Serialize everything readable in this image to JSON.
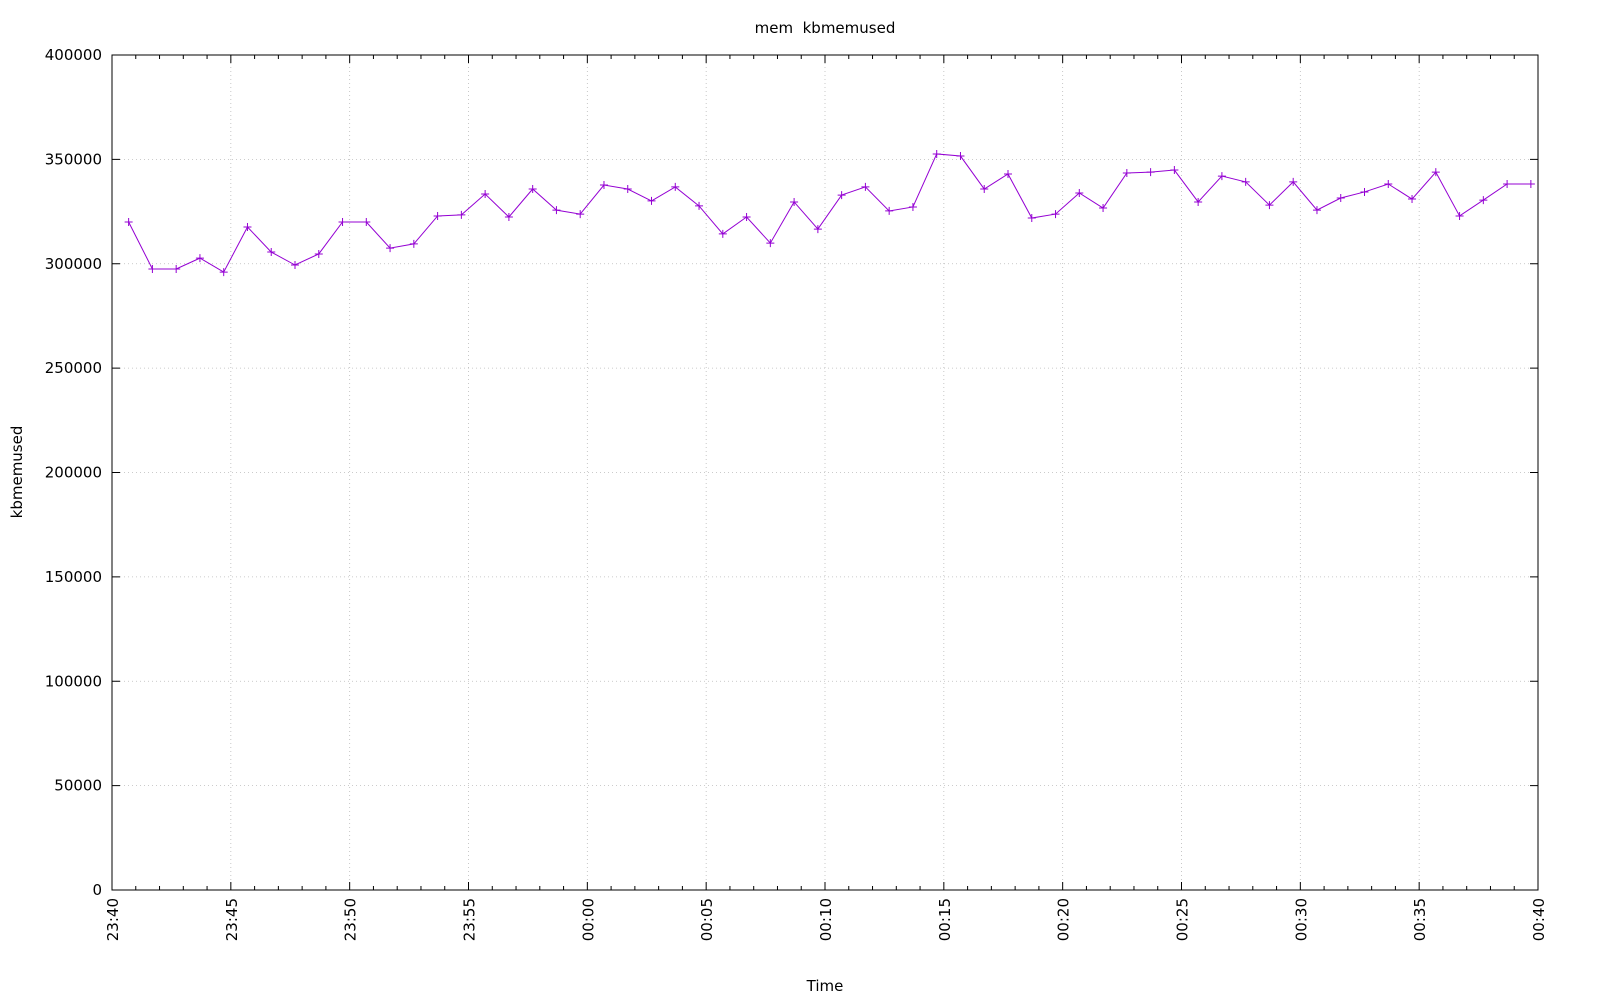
{
  "chart_data": {
    "type": "line",
    "title": "mem  kbmemused",
    "xlabel": "Time",
    "ylabel": "kbmemused",
    "x": [
      1420.7,
      1421.7,
      1422.7,
      1423.7,
      1424.7,
      1425.7,
      1426.7,
      1427.7,
      1428.7,
      1429.7,
      1430.7,
      1431.7,
      1432.7,
      1433.7,
      1434.7,
      1435.7,
      1436.7,
      1437.7,
      1438.7,
      1439.7,
      1440.7,
      1441.7,
      1442.7,
      1443.7,
      1444.7,
      1445.7,
      1446.7,
      1447.7,
      1448.7,
      1449.7,
      1450.7,
      1451.7,
      1452.7,
      1453.7,
      1454.7,
      1455.7,
      1456.7,
      1457.7,
      1458.7,
      1459.7,
      1460.7,
      1461.7,
      1462.7,
      1463.7,
      1464.7,
      1465.7,
      1466.7,
      1467.7,
      1468.7,
      1469.7,
      1470.7,
      1471.7,
      1472.7,
      1473.7,
      1474.7,
      1475.7,
      1476.7,
      1477.7,
      1478.7,
      1479.7
    ],
    "series": [
      {
        "name": "kbmemused",
        "color": "#9400d3",
        "values": [
          320000,
          297500,
          297500,
          302700,
          296000,
          317600,
          305600,
          299400,
          304700,
          320000,
          320000,
          307500,
          309500,
          322900,
          323400,
          333400,
          322400,
          335800,
          325700,
          323800,
          337700,
          335800,
          330100,
          336800,
          327700,
          314300,
          322400,
          309900,
          329600,
          316600,
          332900,
          336800,
          325300,
          327200,
          352600,
          351600,
          335800,
          343000,
          321900,
          323800,
          333900,
          326700,
          343500,
          343900,
          344900,
          329600,
          342000,
          339200,
          328100,
          339200,
          325700,
          331500,
          334400,
          338200,
          331000,
          343900,
          322900,
          330500,
          338200,
          338200
        ]
      }
    ],
    "xlim": [
      1420,
      1480
    ],
    "xticks": [
      {
        "value": 1420,
        "label": "23:40"
      },
      {
        "value": 1425,
        "label": "23:45"
      },
      {
        "value": 1430,
        "label": "23:50"
      },
      {
        "value": 1435,
        "label": "23:55"
      },
      {
        "value": 1440,
        "label": "00:00"
      },
      {
        "value": 1445,
        "label": "00:05"
      },
      {
        "value": 1450,
        "label": "00:10"
      },
      {
        "value": 1455,
        "label": "00:15"
      },
      {
        "value": 1460,
        "label": "00:20"
      },
      {
        "value": 1465,
        "label": "00:25"
      },
      {
        "value": 1470,
        "label": "00:30"
      },
      {
        "value": 1475,
        "label": "00:35"
      },
      {
        "value": 1480,
        "label": "00:40"
      }
    ],
    "ylim": [
      0,
      400000
    ],
    "yticks": [
      0,
      50000,
      100000,
      150000,
      200000,
      250000,
      300000,
      350000,
      400000
    ],
    "grid": true
  }
}
